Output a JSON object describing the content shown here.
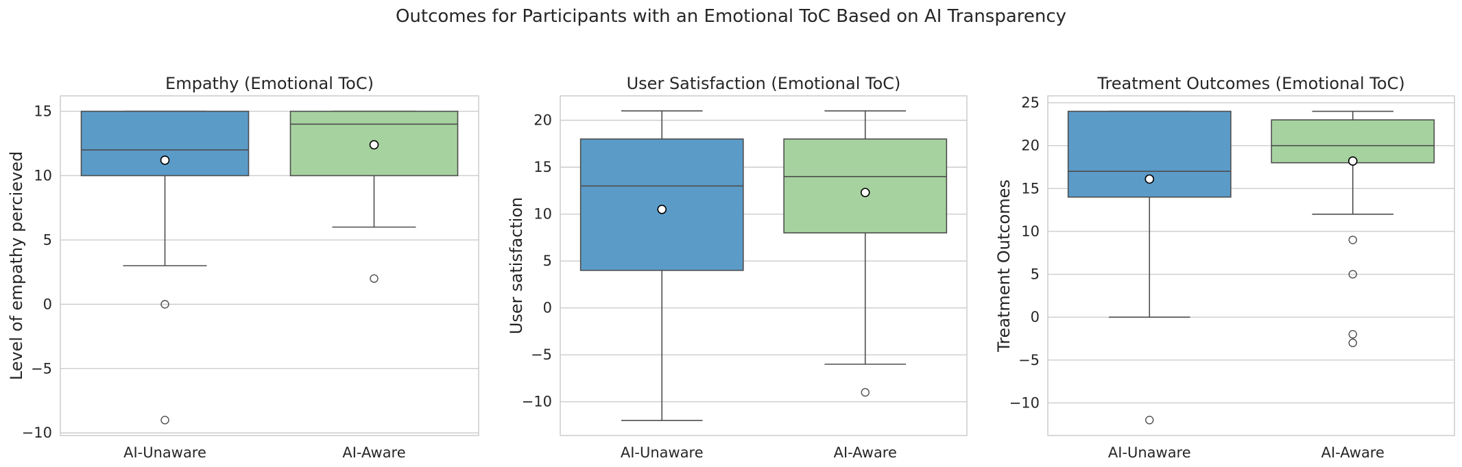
{
  "figure_title": "Outcomes for Participants with an Emotional ToC Based on AI Transparency",
  "colors": {
    "AI-Unaware": "#5b9bc8",
    "AI-Aware": "#a6d29f",
    "line": "#4d4d4d",
    "mean_fill": "#ffffff"
  },
  "chart_data": [
    {
      "type": "box",
      "title": "Empathy (Emotional ToC)",
      "xlabel": "",
      "ylabel": "Level of empathy percieved",
      "ylim": [
        -10.2,
        16.2
      ],
      "yticks": [
        -10,
        -5,
        0,
        5,
        10,
        15
      ],
      "ytick_labels": [
        "−10",
        "−5",
        "0",
        "5",
        "10",
        "15"
      ],
      "grid": true,
      "categories": [
        "AI-Unaware",
        "AI-Aware"
      ],
      "boxes": [
        {
          "category": "AI-Unaware",
          "whisker_low": 3,
          "q1": 10,
          "median": 12,
          "q3": 15,
          "whisker_high": 15,
          "mean": 11.2,
          "outliers": [
            0,
            -9
          ]
        },
        {
          "category": "AI-Aware",
          "whisker_low": 6,
          "q1": 10,
          "median": 14,
          "q3": 15,
          "whisker_high": 15,
          "mean": 12.4,
          "outliers": [
            2
          ]
        }
      ]
    },
    {
      "type": "box",
      "title": "User Satisfaction (Emotional ToC)",
      "xlabel": "",
      "ylabel": "User satisfaction",
      "ylim": [
        -13.6,
        22.6
      ],
      "yticks": [
        -10,
        -5,
        0,
        5,
        10,
        15,
        20
      ],
      "ytick_labels": [
        "−10",
        "−5",
        "0",
        "5",
        "10",
        "15",
        "20"
      ],
      "grid": true,
      "categories": [
        "AI-Unaware",
        "AI-Aware"
      ],
      "boxes": [
        {
          "category": "AI-Unaware",
          "whisker_low": -12,
          "q1": 4,
          "median": 13,
          "q3": 18,
          "whisker_high": 21,
          "mean": 10.5,
          "outliers": []
        },
        {
          "category": "AI-Aware",
          "whisker_low": -6,
          "q1": 8,
          "median": 14,
          "q3": 18,
          "whisker_high": 21,
          "mean": 12.3,
          "outliers": [
            -9
          ]
        }
      ]
    },
    {
      "type": "box",
      "title": "Treatment Outcomes (Emotional ToC)",
      "xlabel": "",
      "ylabel": "Treatment Outcomes",
      "ylim": [
        -13.8,
        25.8
      ],
      "yticks": [
        -10,
        -5,
        0,
        5,
        10,
        15,
        20,
        25
      ],
      "ytick_labels": [
        "−10",
        "−5",
        "0",
        "5",
        "10",
        "15",
        "20",
        "25"
      ],
      "grid": true,
      "categories": [
        "AI-Unaware",
        "AI-Aware"
      ],
      "boxes": [
        {
          "category": "AI-Unaware",
          "whisker_low": 0,
          "q1": 14,
          "median": 17,
          "q3": 24,
          "whisker_high": 24,
          "mean": 16.1,
          "outliers": [
            -12
          ]
        },
        {
          "category": "AI-Aware",
          "whisker_low": 12,
          "q1": 18,
          "median": 20,
          "q3": 23,
          "whisker_high": 24,
          "mean": 18.2,
          "outliers": [
            9,
            5,
            -2,
            -3
          ]
        }
      ]
    }
  ]
}
